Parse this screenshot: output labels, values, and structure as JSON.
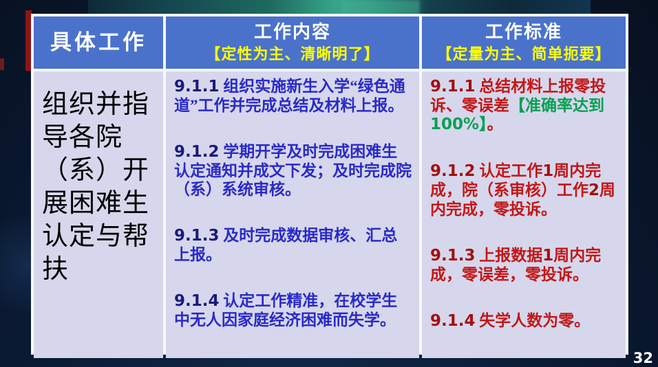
{
  "page": {
    "number": "32"
  },
  "colors": {
    "header_blue": "#4a72cb",
    "cell_lavender": "#d6d7ec",
    "subtitle_yellow": "#ffff00",
    "content_blue": "#2a2ac8",
    "standard_red": "#c41616",
    "highlight_green": "#0aa052",
    "accent_dark_red": "#8e1414",
    "background_navy": "#0a1a33"
  },
  "table": {
    "header": {
      "col1_title": "具体工作",
      "col2_title": "工作内容",
      "col2_subtitle": "【定性为主、清晰明了】",
      "col3_title": "工作标准",
      "col3_subtitle": "【定量为主、简单扼要】"
    },
    "row": {
      "task": "组织并指导各院（系）开展困难生认定与帮扶",
      "work_items": [
        {
          "runs": [
            {
              "t": "9.1.1",
              "s": "num"
            },
            {
              "t": " 组织实施新生入学“绿色通道”工作并完成总结及材料上报。",
              "s": "text"
            }
          ]
        },
        {
          "runs": [
            {
              "t": "9.1.2",
              "s": "num"
            },
            {
              "t": " 学期开学及时完成困难生认定通知并成文下发；及时完成院（系）系统审核。",
              "s": "text"
            }
          ]
        },
        {
          "runs": [
            {
              "t": "9.1.3",
              "s": "num"
            },
            {
              "t": " 及时完成数据审核、汇总上报。",
              "s": "text"
            }
          ]
        },
        {
          "runs": [
            {
              "t": "9.1.4",
              "s": "num"
            },
            {
              "t": " 认定工作精准，在校学生中无人因家庭经济困难而失学。",
              "s": "text"
            }
          ]
        }
      ],
      "standard_items": [
        {
          "runs": [
            {
              "t": "9.1.1",
              "s": "num"
            },
            {
              "t": " 总结材料上报零投诉、零误差",
              "s": "text"
            },
            {
              "t": "【准确率达到",
              "s": "green"
            },
            {
              "t": "100%",
              "s": "green-num"
            },
            {
              "t": "】",
              "s": "green"
            },
            {
              "t": "。",
              "s": "text"
            }
          ]
        },
        {
          "runs": [
            {
              "t": "9.1.2",
              "s": "num"
            },
            {
              "t": " 认定工作",
              "s": "text"
            },
            {
              "t": "1",
              "s": "num-inline"
            },
            {
              "t": "周内完成，院（系审核）工作",
              "s": "text"
            },
            {
              "t": "2",
              "s": "num-inline"
            },
            {
              "t": "周内完成，零投诉。",
              "s": "text"
            }
          ]
        },
        {
          "runs": [
            {
              "t": "9.1.3",
              "s": "num"
            },
            {
              "t": " 上报数据",
              "s": "text"
            },
            {
              "t": "1",
              "s": "num-inline"
            },
            {
              "t": "周内完成，零误差，零投诉。",
              "s": "text"
            }
          ]
        },
        {
          "runs": [
            {
              "t": "9.1.4",
              "s": "num"
            },
            {
              "t": " 失学人数为零。",
              "s": "text"
            }
          ]
        }
      ]
    }
  }
}
